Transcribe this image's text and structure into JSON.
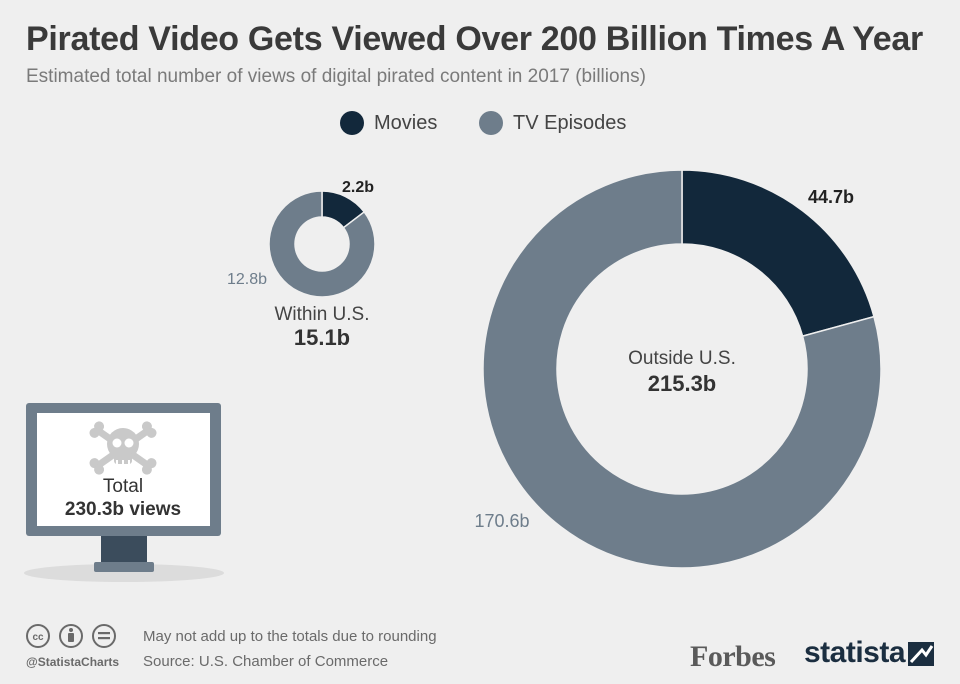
{
  "title": "Pirated Video Gets Viewed Over 200 Billion Times A Year",
  "subtitle": "Estimated total number of views of digital pirated content in 2017 (billions)",
  "colors": {
    "movies": "#12283b",
    "tv": "#6e7d8b",
    "background": "#efefef"
  },
  "legend": [
    {
      "label": "Movies",
      "color": "#12283b"
    },
    {
      "label": "TV Episodes",
      "color": "#6e7d8b"
    }
  ],
  "chart_data": [
    {
      "type": "pie",
      "variant": "donut",
      "title": "",
      "center_label": "Within U.S.",
      "center_value": "15.1b",
      "slices": [
        {
          "name": "Movies",
          "value": 2.2,
          "label": "2.2b"
        },
        {
          "name": "TV Episodes",
          "value": 12.8,
          "label": "12.8b"
        }
      ]
    },
    {
      "type": "pie",
      "variant": "donut",
      "title": "",
      "center_label": "Outside U.S.",
      "center_value": "215.3b",
      "slices": [
        {
          "name": "Movies",
          "value": 44.7,
          "label": "44.7b"
        },
        {
          "name": "TV Episodes",
          "value": 170.6,
          "label": "170.6b"
        }
      ]
    }
  ],
  "total": {
    "label": "Total",
    "value": "230.3b views"
  },
  "footer": {
    "note": "May not add up to the totals due to rounding",
    "source": "Source: U.S. Chamber of Commerce",
    "handle": "@StatistaCharts"
  },
  "brands": {
    "forbes": "Forbes",
    "statista": "statista"
  },
  "icons": {
    "total": "skull-crossbones-icon",
    "monitor": "monitor-icon",
    "license": [
      "cc-icon",
      "attribution-icon",
      "no-derivatives-icon"
    ],
    "statista_logo": "statista-logo-icon"
  }
}
